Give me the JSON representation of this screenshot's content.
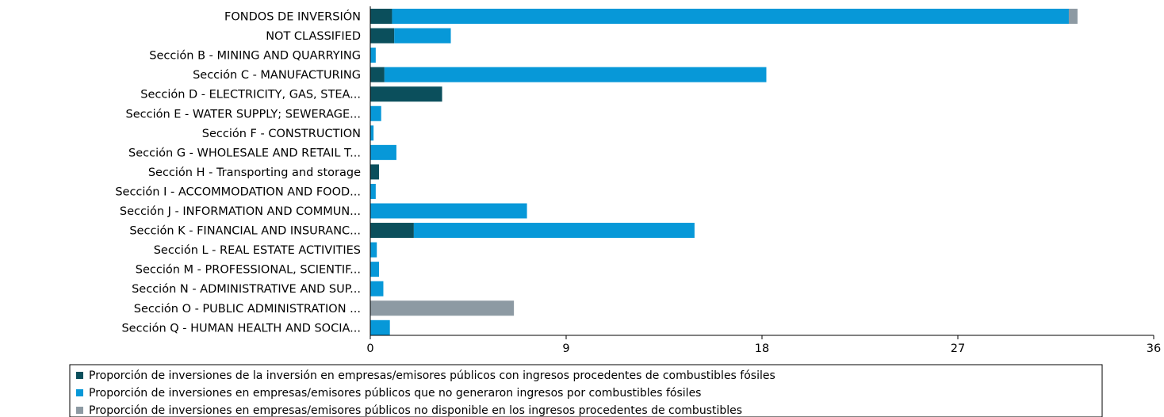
{
  "chart_data": {
    "type": "bar",
    "orientation": "horizontal",
    "stacked": true,
    "categories": [
      "FONDOS DE INVERSIÓN",
      "NOT CLASSIFIED",
      "Sección B - MINING AND QUARRYING",
      "Sección C - MANUFACTURING",
      "Sección D - ELECTRICITY, GAS, STEA...",
      "Sección E - WATER SUPPLY; SEWERAGE...",
      "Sección F - CONSTRUCTION",
      "Sección G - WHOLESALE AND RETAIL T...",
      "Sección H - Transporting and storage",
      "Sección I - ACCOMMODATION AND FOOD...",
      "Sección J - INFORMATION AND COMMUN...",
      "Sección K - FINANCIAL AND INSURANC...",
      "Sección L - REAL ESTATE ACTIVITIES",
      "Sección M - PROFESSIONAL, SCIENTIF...",
      "Sección N - ADMINISTRATIVE AND SUP...",
      "Sección O - PUBLIC ADMINISTRATION ...",
      "Sección Q - HUMAN HEALTH AND SOCIA..."
    ],
    "series": [
      {
        "name": "Proporción de inversiones de la inversión en empresas/emisores públicos con ingresos procedentes de combustibles fósiles",
        "color": "#0b4f5c",
        "values": [
          1.0,
          1.1,
          0,
          0.65,
          3.3,
          0,
          0,
          0,
          0.4,
          0,
          0,
          2.0,
          0,
          0,
          0,
          0,
          0
        ]
      },
      {
        "name": "Proporción de inversiones en empresas/emisores públicos que no generaron ingresos por combustibles fósiles",
        "color": "#0798d8",
        "values": [
          31.1,
          2.6,
          0.25,
          17.55,
          0,
          0.5,
          0.15,
          1.2,
          0,
          0.25,
          7.2,
          12.9,
          0.3,
          0.4,
          0.6,
          0,
          0.9
        ]
      },
      {
        "name": "Proporción de inversiones en empresas/emisores públicos no disponible en los ingresos procedentes de combustibles",
        "color": "#8d9aa3",
        "values": [
          0.4,
          0,
          0,
          0,
          0,
          0,
          0,
          0,
          0,
          0,
          0,
          0,
          0,
          0,
          0,
          6.6,
          0
        ]
      }
    ],
    "xlim": [
      0,
      36
    ],
    "xticks": [
      "0",
      "9",
      "18",
      "27",
      "36"
    ],
    "title": "",
    "xlabel": "",
    "ylabel": "",
    "grid": false,
    "legend_position": "bottom"
  }
}
